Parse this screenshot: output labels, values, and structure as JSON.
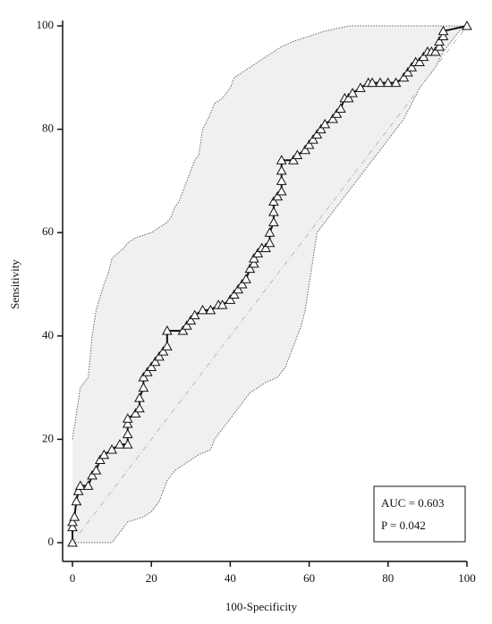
{
  "chart_data": {
    "type": "roc",
    "xlabel": "100-Specificity",
    "ylabel": "Sensitivity",
    "annotations": [
      "AUC = 0.603",
      "P = 0.042"
    ],
    "xlim": [
      0,
      100
    ],
    "ylim": [
      0,
      100
    ],
    "xticks": [
      0,
      20,
      40,
      60,
      80,
      100
    ],
    "yticks": [
      0,
      20,
      40,
      60,
      80,
      100
    ],
    "band_color": "#f0f0f0",
    "line_color": "#111111",
    "diagonal_color": "#bbbbbb",
    "roc": {
      "x": [
        0,
        0,
        0,
        0.5,
        1,
        1.5,
        2,
        4,
        5,
        6,
        7,
        8,
        10,
        12,
        14,
        14,
        14,
        14,
        16,
        17,
        17,
        18,
        18,
        19,
        20,
        21,
        22,
        23,
        24,
        24,
        28,
        29,
        30,
        31,
        33,
        35,
        37,
        38,
        40,
        41,
        42,
        43,
        44,
        45,
        46,
        46,
        47,
        48,
        49,
        50,
        50,
        51,
        51,
        51,
        52,
        53,
        53,
        53,
        53,
        56,
        57,
        59,
        60,
        61,
        62,
        63,
        64,
        66,
        67,
        68,
        69,
        70,
        71,
        73,
        75,
        76,
        78,
        80,
        82,
        84,
        85,
        86,
        87,
        88,
        89,
        90,
        91,
        92,
        93,
        93,
        94,
        94,
        100
      ],
      "y": [
        0,
        3,
        4,
        5,
        8,
        10,
        11,
        11,
        13,
        14,
        16,
        17,
        18,
        19,
        19,
        21,
        23,
        24,
        25,
        26,
        28,
        30,
        32,
        33,
        34,
        35,
        36,
        37,
        38,
        41,
        41,
        42,
        43,
        44,
        45,
        45,
        46,
        46,
        47,
        48,
        49,
        50,
        51,
        53,
        54,
        55,
        56,
        57,
        57,
        58,
        60,
        62,
        64,
        66,
        67,
        68,
        70,
        72,
        74,
        74,
        75,
        76,
        77,
        78,
        79,
        80,
        81,
        82,
        83,
        84,
        86,
        86,
        87,
        88,
        89,
        89,
        89,
        89,
        89,
        90,
        91,
        92,
        93,
        93,
        94,
        95,
        95,
        95,
        96,
        97,
        98,
        99,
        100
      ]
    },
    "ci_upper": {
      "x": [
        0,
        1,
        2,
        4,
        5,
        6,
        8,
        9,
        10,
        13,
        14,
        16,
        20,
        22,
        24,
        25,
        26,
        27,
        28,
        29,
        30,
        31,
        32,
        33,
        35,
        36,
        38,
        40,
        41,
        43,
        45,
        47,
        49,
        51,
        53,
        56,
        60,
        64,
        70,
        100
      ],
      "y": [
        20,
        25,
        30,
        32,
        40,
        45,
        50,
        52,
        55,
        57,
        58,
        59,
        60,
        61,
        62,
        63,
        65,
        66,
        68,
        70,
        72,
        74,
        75,
        80,
        83,
        85,
        86,
        88,
        90,
        91,
        92,
        93,
        94,
        95,
        96,
        97,
        98,
        99,
        100,
        100
      ]
    },
    "ci_lower": {
      "x": [
        0,
        10,
        12,
        14,
        18,
        20,
        22,
        23,
        24,
        26,
        28,
        30,
        32,
        35,
        36,
        38,
        40,
        41,
        43,
        45,
        47,
        49,
        52,
        54,
        55,
        56,
        57,
        58,
        59,
        60,
        61,
        62,
        64,
        66,
        68,
        70,
        72,
        74,
        76,
        78,
        80,
        82,
        84,
        86,
        88,
        90,
        92,
        94,
        96,
        98,
        100
      ],
      "y": [
        0,
        0,
        2,
        4,
        5,
        6,
        8,
        10,
        12,
        14,
        15,
        16,
        17,
        18,
        20,
        22,
        24,
        25,
        27,
        29,
        30,
        31,
        32,
        34,
        36,
        38,
        40,
        42,
        45,
        50,
        55,
        60,
        62,
        64,
        66,
        68,
        70,
        72,
        74,
        76,
        78,
        80,
        82,
        85,
        88,
        90,
        92,
        95,
        97,
        99,
        100
      ]
    }
  }
}
